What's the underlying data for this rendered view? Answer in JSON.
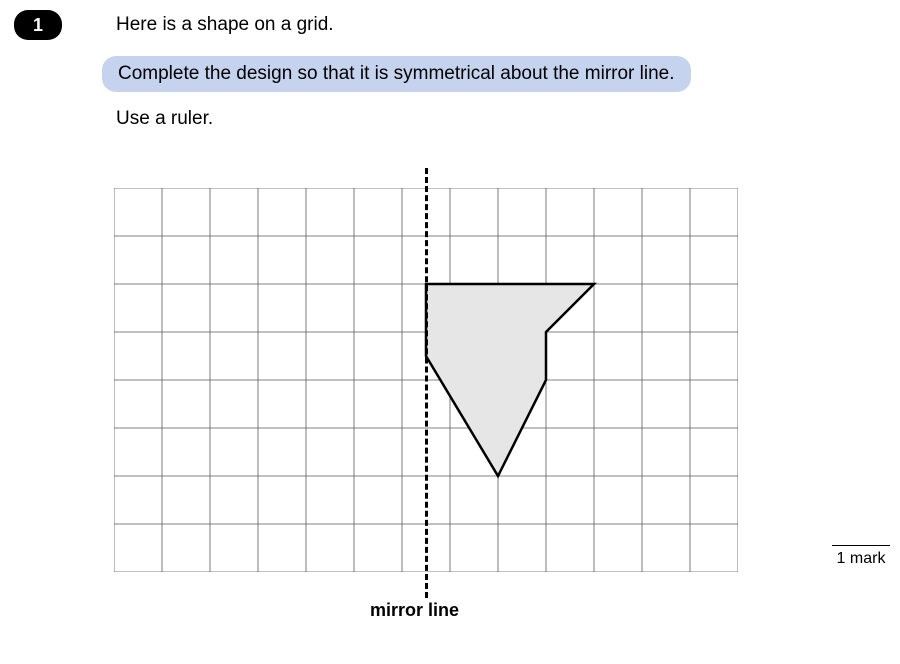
{
  "question": {
    "number": "1",
    "intro": "Here is a shape on a grid.",
    "instruction_highlighted": "Complete the design so that it is symmetrical about the mirror line.",
    "use_ruler": "Use a ruler.",
    "mirror_label": "mirror line",
    "mark_text": "1 mark"
  },
  "grid": {
    "cols": 13,
    "rows": 8,
    "cell": 48,
    "line_color": "#5a5a5a",
    "line_width": 0.8,
    "mirror_col": 6.5,
    "mirror_dash_color": "#000000"
  },
  "shape": {
    "fill": "#e6e6e6",
    "stroke": "#000000",
    "stroke_width": 2.5,
    "points_grid": [
      [
        6.5,
        2
      ],
      [
        10,
        2
      ],
      [
        9,
        3
      ],
      [
        9,
        4
      ],
      [
        8,
        6
      ],
      [
        6.5,
        3.5
      ]
    ]
  }
}
